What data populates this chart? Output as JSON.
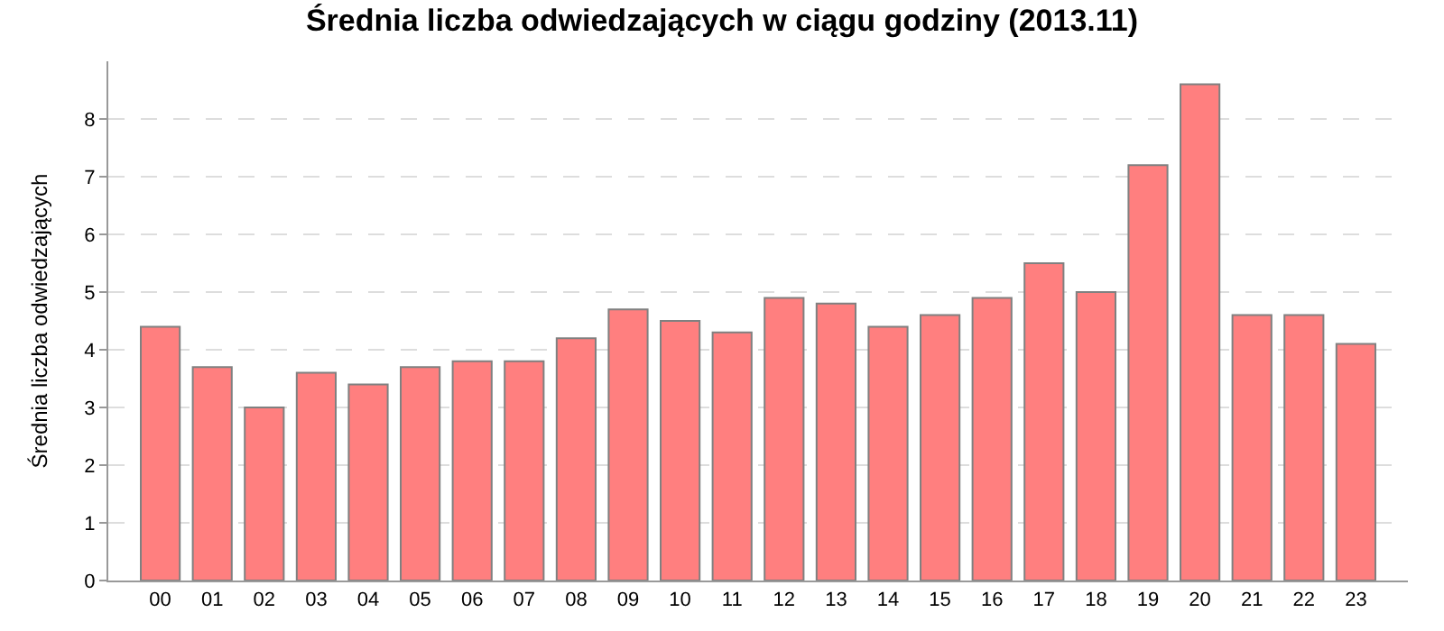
{
  "chart_data": {
    "type": "bar",
    "title": "Średnia liczba odwiedzających w ciągu godziny (2013.11)",
    "ylabel": "Średnia liczba odwiedzających",
    "categories": [
      "00",
      "01",
      "02",
      "03",
      "04",
      "05",
      "06",
      "07",
      "08",
      "09",
      "10",
      "11",
      "12",
      "13",
      "14",
      "15",
      "16",
      "17",
      "18",
      "19",
      "20",
      "21",
      "22",
      "23"
    ],
    "values": [
      4.4,
      3.7,
      3.0,
      3.6,
      3.4,
      3.7,
      3.8,
      3.8,
      4.2,
      4.7,
      4.5,
      4.3,
      4.9,
      4.8,
      4.4,
      4.6,
      4.9,
      5.5,
      5.0,
      7.2,
      8.6,
      4.6,
      4.6,
      4.1
    ],
    "color": "#ff7f7f",
    "ylim": [
      0,
      9
    ],
    "yticks": [
      0,
      1,
      2,
      3,
      4,
      5,
      6,
      7,
      8
    ],
    "grid": "y"
  }
}
